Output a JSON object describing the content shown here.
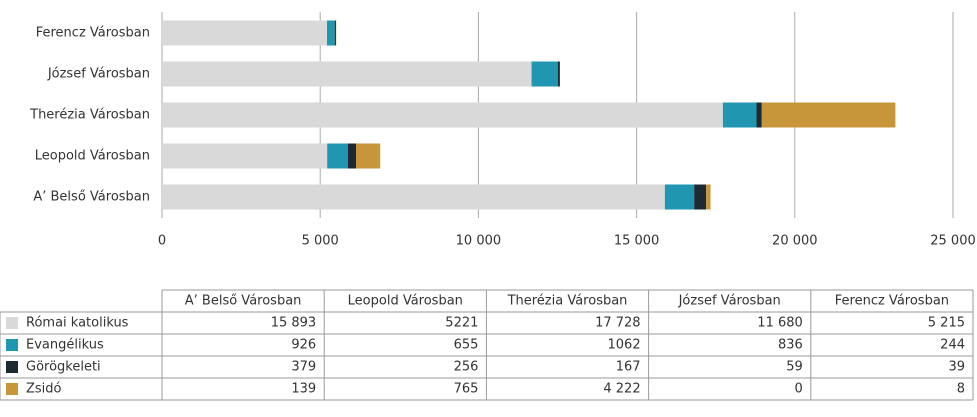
{
  "chart_data": {
    "type": "stacked_bar_horizontal",
    "categories": [
      "A’ Belső Városban",
      "Leopold Városban",
      "Therézia Városban",
      "József Városban",
      "Ferencz Városban"
    ],
    "series": [
      {
        "name": "Római katolikus",
        "color": "#d9d9d9",
        "values": [
          15893,
          5221,
          17728,
          11680,
          5215
        ],
        "value_labels": [
          "15 893",
          "5221",
          "17 728",
          "11 680",
          "5 215"
        ]
      },
      {
        "name": "Evangélikus",
        "color": "#2196b0",
        "values": [
          926,
          655,
          1062,
          836,
          244
        ]
      },
      {
        "name": "Görögkeleti",
        "color": "#1c2b33",
        "values": [
          379,
          256,
          167,
          59,
          39
        ]
      },
      {
        "name": "Zsidó",
        "color": "#c8963a",
        "values": [
          139,
          765,
          4222,
          0,
          8
        ],
        "value_labels": [
          "139",
          "765",
          "4 222",
          "0",
          "8"
        ]
      }
    ],
    "xlim": [
      0,
      25000
    ],
    "xticks": [
      0,
      {
        "value": 5000,
        "label": "5 000"
      },
      {
        "value": 10000,
        "label": "10 000"
      },
      {
        "value": 15000,
        "label": "15 000"
      },
      {
        "value": 20000,
        "label": "20 000"
      },
      {
        "value": 25000,
        "label": "25 000"
      }
    ],
    "grid": true
  }
}
